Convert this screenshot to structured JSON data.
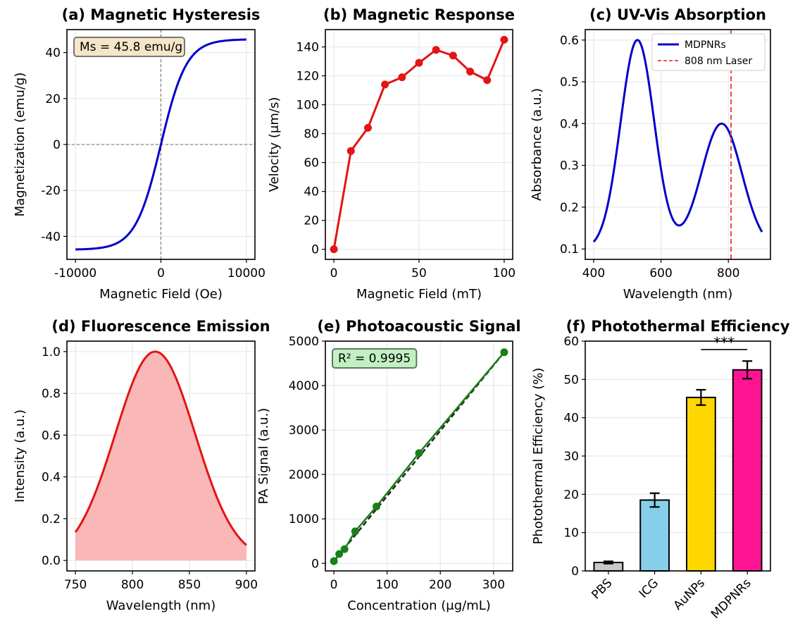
{
  "chart_data": [
    {
      "id": "a",
      "type": "line",
      "title": "(a) Magnetic Hysteresis",
      "xlabel": "Magnetic Field (Oe)",
      "ylabel": "Magnetization (emu/g)",
      "xlim": [
        -11000,
        11000
      ],
      "ylim": [
        -50,
        50
      ],
      "xticks": [
        -10000,
        0,
        10000
      ],
      "yticks": [
        -40,
        -20,
        0,
        20,
        40
      ],
      "curve": {
        "function": "Ms*tanh(H/3000)",
        "Ms": 45.8,
        "x_range": [
          -10000,
          10000
        ]
      },
      "refline_x": 0,
      "refline_y": 0,
      "color": "#0000cc",
      "annotation": "Ms = 45.8 emu/g"
    },
    {
      "id": "b",
      "type": "line",
      "title": "(b) Magnetic Response",
      "xlabel": "Magnetic Field (mT)",
      "ylabel": "Velocity (μm/s)",
      "xlim": [
        -5,
        105
      ],
      "ylim": [
        -7,
        152
      ],
      "xticks": [
        0,
        50,
        100
      ],
      "yticks": [
        0,
        20,
        40,
        60,
        80,
        100,
        120,
        140
      ],
      "x": [
        0,
        10,
        20,
        30,
        40,
        50,
        60,
        70,
        80,
        90,
        100
      ],
      "y": [
        0,
        68,
        84,
        114,
        119,
        129,
        138,
        134,
        123,
        117,
        145
      ],
      "color": "#e31414"
    },
    {
      "id": "c",
      "type": "line",
      "title": "(c) UV-Vis Absorption",
      "xlabel": "Wavelength (nm)",
      "ylabel": "Absorbance (a.u.)",
      "xlim": [
        375,
        925
      ],
      "ylim": [
        0.075,
        0.625
      ],
      "xticks": [
        400,
        600,
        800
      ],
      "yticks": [
        0.1,
        0.2,
        0.3,
        0.4,
        0.5,
        0.6
      ],
      "curve": {
        "baseline": 0.1,
        "peaks": [
          {
            "center": 530,
            "height": 0.5,
            "width": 50
          },
          {
            "center": 780,
            "height": 0.3,
            "width": 60
          }
        ],
        "x_range": [
          400,
          900
        ]
      },
      "laser_line": 808,
      "legend": [
        "MDPNRs",
        "808 nm Laser"
      ],
      "legend_position": "top-right",
      "colors": {
        "curve": "#0000cc",
        "laser": "#e8524f"
      }
    },
    {
      "id": "d",
      "type": "area",
      "title": "(d) Fluorescence Emission",
      "xlabel": "Wavelength (nm)",
      "ylabel": "Intensity (a.u.)",
      "xlim": [
        742.5,
        907.5
      ],
      "ylim": [
        -0.05,
        1.05
      ],
      "xticks": [
        750,
        800,
        850,
        900
      ],
      "yticks": [
        0.0,
        0.2,
        0.4,
        0.6,
        0.8,
        1.0
      ],
      "curve": {
        "center": 820,
        "sigma": 35,
        "amplitude": 1.0,
        "x_range": [
          750,
          900
        ]
      },
      "colors": {
        "line": "#e31414",
        "fill": "#f9b3b3"
      }
    },
    {
      "id": "e",
      "type": "scatter",
      "title": "(e) Photoacoustic Signal",
      "xlabel": "Concentration (μg/mL)",
      "ylabel": "PA Signal (a.u.)",
      "xlim": [
        -16,
        336
      ],
      "ylim": [
        -170,
        5000
      ],
      "xticks": [
        0,
        100,
        200,
        300
      ],
      "yticks": [
        0,
        1000,
        2000,
        3000,
        4000,
        5000
      ],
      "x": [
        0,
        10,
        20,
        40,
        80,
        160,
        320
      ],
      "y": [
        50,
        210,
        320,
        720,
        1280,
        2480,
        4750
      ],
      "fit": {
        "slope": 14.7,
        "intercept": 45
      },
      "annotation": "R² = 0.9995",
      "colors": {
        "points": "#1a7f1a",
        "fit": "#222222"
      }
    },
    {
      "id": "f",
      "type": "bar",
      "title": "(f) Photothermal Efficiency",
      "xlabel": "",
      "ylabel": "Photothermal Efficiency (%)",
      "ylim": [
        0,
        60
      ],
      "yticks": [
        0,
        10,
        20,
        30,
        40,
        50,
        60
      ],
      "categories": [
        "PBS",
        "ICG",
        "AuNPs",
        "MDPNRs"
      ],
      "values": [
        2.2,
        18.5,
        45.3,
        52.5
      ],
      "errors": [
        0.3,
        1.8,
        2.0,
        2.3
      ],
      "colors": [
        "#c8c8c8",
        "#87ceeb",
        "#ffd700",
        "#ff1493"
      ],
      "significance": {
        "between": [
          "AuNPs",
          "MDPNRs"
        ],
        "label": "***",
        "level": 57.8
      }
    }
  ]
}
